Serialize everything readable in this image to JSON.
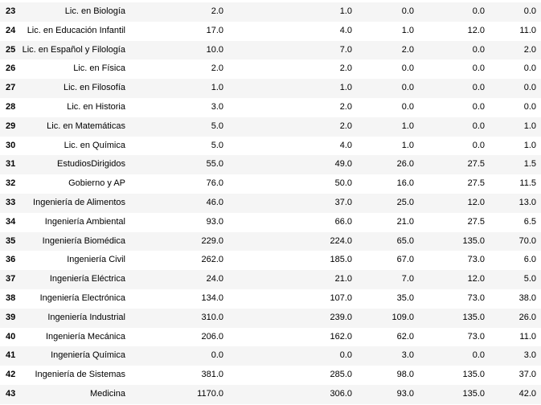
{
  "table": {
    "rows": [
      {
        "index": "23",
        "name": "Lic. en Biología",
        "c1": "2.0",
        "c2": "1.0",
        "c3": "0.0",
        "c4": "0.0",
        "c5": "0.0"
      },
      {
        "index": "24",
        "name": "Lic. en Educación Infantil",
        "c1": "17.0",
        "c2": "4.0",
        "c3": "1.0",
        "c4": "12.0",
        "c5": "11.0"
      },
      {
        "index": "25",
        "name": "Lic. en Español y Filología",
        "c1": "10.0",
        "c2": "7.0",
        "c3": "2.0",
        "c4": "0.0",
        "c5": "2.0"
      },
      {
        "index": "26",
        "name": "Lic. en Física",
        "c1": "2.0",
        "c2": "2.0",
        "c3": "0.0",
        "c4": "0.0",
        "c5": "0.0"
      },
      {
        "index": "27",
        "name": "Lic. en Filosofía",
        "c1": "1.0",
        "c2": "1.0",
        "c3": "0.0",
        "c4": "0.0",
        "c5": "0.0"
      },
      {
        "index": "28",
        "name": "Lic. en Historia",
        "c1": "3.0",
        "c2": "2.0",
        "c3": "0.0",
        "c4": "0.0",
        "c5": "0.0"
      },
      {
        "index": "29",
        "name": "Lic. en Matemáticas",
        "c1": "5.0",
        "c2": "2.0",
        "c3": "1.0",
        "c4": "0.0",
        "c5": "1.0"
      },
      {
        "index": "30",
        "name": "Lic. en Química",
        "c1": "5.0",
        "c2": "4.0",
        "c3": "1.0",
        "c4": "0.0",
        "c5": "1.0"
      },
      {
        "index": "31",
        "name": "EstudiosDirigidos",
        "c1": "55.0",
        "c2": "49.0",
        "c3": "26.0",
        "c4": "27.5",
        "c5": "1.5"
      },
      {
        "index": "32",
        "name": "Gobierno y AP",
        "c1": "76.0",
        "c2": "50.0",
        "c3": "16.0",
        "c4": "27.5",
        "c5": "11.5"
      },
      {
        "index": "33",
        "name": "Ingeniería de Alimentos",
        "c1": "46.0",
        "c2": "37.0",
        "c3": "25.0",
        "c4": "12.0",
        "c5": "13.0"
      },
      {
        "index": "34",
        "name": "Ingeniería Ambiental",
        "c1": "93.0",
        "c2": "66.0",
        "c3": "21.0",
        "c4": "27.5",
        "c5": "6.5"
      },
      {
        "index": "35",
        "name": "Ingeniería Biomédica",
        "c1": "229.0",
        "c2": "224.0",
        "c3": "65.0",
        "c4": "135.0",
        "c5": "70.0"
      },
      {
        "index": "36",
        "name": "Ingeniería Civil",
        "c1": "262.0",
        "c2": "185.0",
        "c3": "67.0",
        "c4": "73.0",
        "c5": "6.0"
      },
      {
        "index": "37",
        "name": "Ingeniería Eléctrica",
        "c1": "24.0",
        "c2": "21.0",
        "c3": "7.0",
        "c4": "12.0",
        "c5": "5.0"
      },
      {
        "index": "38",
        "name": "Ingeniería Electrónica",
        "c1": "134.0",
        "c2": "107.0",
        "c3": "35.0",
        "c4": "73.0",
        "c5": "38.0"
      },
      {
        "index": "39",
        "name": "Ingeniería Industrial",
        "c1": "310.0",
        "c2": "239.0",
        "c3": "109.0",
        "c4": "135.0",
        "c5": "26.0"
      },
      {
        "index": "40",
        "name": "Ingeniería Mecánica",
        "c1": "206.0",
        "c2": "162.0",
        "c3": "62.0",
        "c4": "73.0",
        "c5": "11.0"
      },
      {
        "index": "41",
        "name": "Ingeniería Química",
        "c1": "0.0",
        "c2": "0.0",
        "c3": "3.0",
        "c4": "0.0",
        "c5": "3.0"
      },
      {
        "index": "42",
        "name": "Ingeniería de Sistemas",
        "c1": "381.0",
        "c2": "285.0",
        "c3": "98.0",
        "c4": "135.0",
        "c5": "37.0"
      },
      {
        "index": "43",
        "name": "Medicina",
        "c1": "1170.0",
        "c2": "306.0",
        "c3": "93.0",
        "c4": "135.0",
        "c5": "42.0"
      }
    ]
  },
  "colors": {
    "row_stripe": "#f5f5f5",
    "row_plain": "#ffffff",
    "text": "#000000"
  }
}
